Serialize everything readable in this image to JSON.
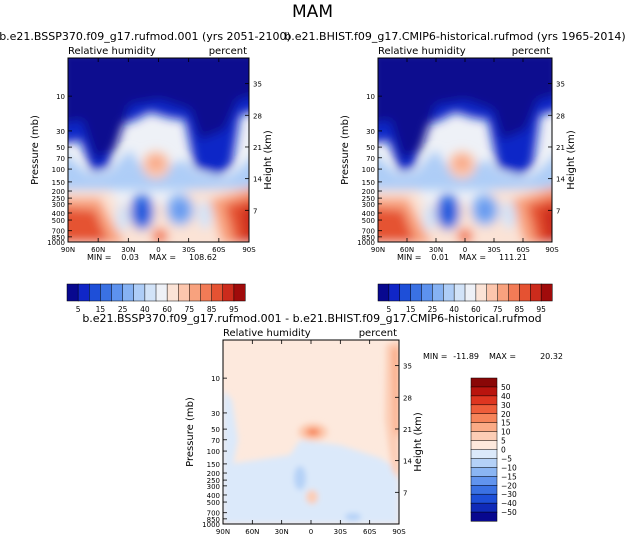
{
  "figure": {
    "title": "MAM",
    "cbar_colors": {
      "abs": [
        "#08088f",
        "#1026c7",
        "#1e4fd8",
        "#3a71e3",
        "#5d92ee",
        "#86b2f3",
        "#aecdf7",
        "#d2e3f8",
        "#eef1f7",
        "#fbe3d6",
        "#fcc6ad",
        "#f8a27e",
        "#f27b56",
        "#e55232",
        "#cc2b1c",
        "#a00b0b"
      ],
      "diff": [
        "#08088f",
        "#0f2ab8",
        "#1d4fd8",
        "#3a71e3",
        "#6194ee",
        "#8ab5f3",
        "#b4d1f7",
        "#dbe9fa",
        "#fde9dd",
        "#fccdb5",
        "#fbab86",
        "#f6845a",
        "#ee5d3a",
        "#de3520",
        "#b9140e",
        "#8a0707"
      ]
    }
  },
  "chart_data": [
    {
      "id": "panel-left",
      "type": "heatmap",
      "title": "b.e21.BSSP370.f09_g17.rufmod.001 (yrs 2051-2100)",
      "left_label": "Relative humidity",
      "right_label": "percent",
      "xlabel": "",
      "ylabel": "Pressure (mb)",
      "ylabel_right": "Height (km)",
      "xticks": [
        "90N",
        "60N",
        "30N",
        "0",
        "30S",
        "60S",
        "90S"
      ],
      "yticks": [
        "10",
        "30",
        "50",
        "70",
        "100",
        "150",
        "200",
        "250",
        "300",
        "400",
        "500",
        "700",
        "850",
        "1000"
      ],
      "height_ticks": [
        "35",
        "28",
        "21",
        "14",
        "7"
      ],
      "ylim": [
        1000,
        3
      ],
      "stats": {
        "min_label": "MIN =",
        "min": "0.03",
        "max_label": "MAX =",
        "max": "108.62"
      },
      "colorbar": {
        "levels": [
          "5",
          "15",
          "25",
          "40",
          "60",
          "75",
          "85",
          "95"
        ]
      }
    },
    {
      "id": "panel-right",
      "type": "heatmap",
      "title": "b.e21.BHIST.f09_g17.CMIP6-historical.rufmod (yrs 1965-2014)",
      "left_label": "Relative humidity",
      "right_label": "percent",
      "xlabel": "",
      "ylabel": "Pressure (mb)",
      "ylabel_right": "Height (km)",
      "xticks": [
        "90N",
        "60N",
        "30N",
        "0",
        "30S",
        "60S",
        "90S"
      ],
      "yticks": [
        "10",
        "30",
        "50",
        "70",
        "100",
        "150",
        "200",
        "250",
        "300",
        "400",
        "500",
        "700",
        "850",
        "1000"
      ],
      "height_ticks": [
        "35",
        "28",
        "21",
        "14",
        "7"
      ],
      "ylim": [
        1000,
        3
      ],
      "stats": {
        "min_label": "MIN =",
        "min": "0.01",
        "max_label": "MAX =",
        "max": "111.21"
      },
      "colorbar": {
        "levels": [
          "5",
          "15",
          "25",
          "40",
          "60",
          "75",
          "85",
          "95"
        ]
      }
    },
    {
      "id": "panel-diff",
      "type": "heatmap",
      "title": "b.e21.BSSP370.f09_g17.rufmod.001 - b.e21.BHIST.f09_g17.CMIP6-historical.rufmod",
      "left_label": "Relative humidity",
      "right_label": "percent",
      "xlabel": "",
      "ylabel": "Pressure (mb)",
      "ylabel_right": "Height (km)",
      "xticks": [
        "90N",
        "60N",
        "30N",
        "0",
        "30S",
        "60S",
        "90S"
      ],
      "yticks": [
        "10",
        "30",
        "50",
        "70",
        "100",
        "150",
        "200",
        "250",
        "300",
        "400",
        "500",
        "700",
        "850",
        "1000"
      ],
      "height_ticks": [
        "35",
        "28",
        "21",
        "14",
        "7"
      ],
      "ylim": [
        1000,
        3
      ],
      "stats": {
        "min_label": "MIN =",
        "min": "-11.89",
        "max_label": "MAX =",
        "max": "20.32"
      },
      "colorbar": {
        "levels": [
          "50",
          "40",
          "30",
          "20",
          "15",
          "10",
          "5",
          "0",
          "−5",
          "−10",
          "−15",
          "−20",
          "−30",
          "−40",
          "−50"
        ]
      }
    }
  ]
}
